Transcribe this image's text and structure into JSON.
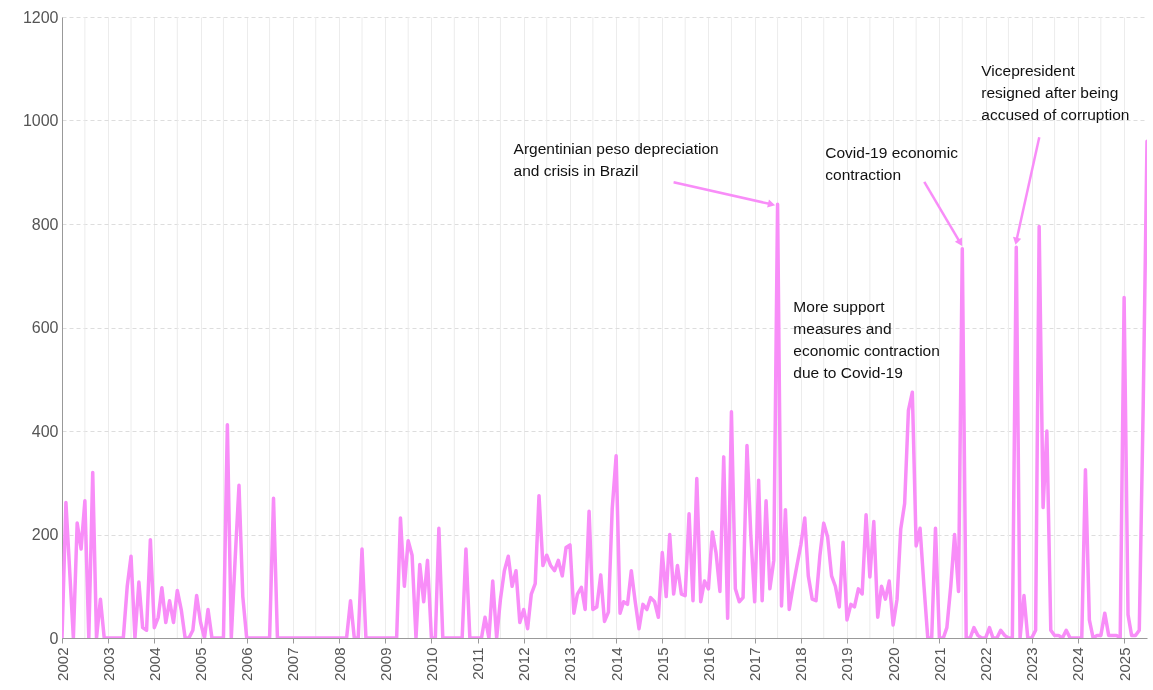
{
  "chart_data": {
    "type": "line",
    "xlim": [
      "2002-01",
      "2025-07"
    ],
    "ylim": [
      0,
      1200
    ],
    "yticks": [
      0,
      200,
      400,
      600,
      800,
      1000,
      1200
    ],
    "xticks": [
      "2002",
      {
        "value": "2002-07",
        "label": null
      },
      "2003",
      {
        "value": "2003-07",
        "label": null
      },
      "2004",
      {
        "value": "2004-07",
        "label": null
      },
      "2005",
      {
        "value": "2005-07",
        "label": null
      },
      "2006",
      {
        "value": "2006-07",
        "label": null
      },
      "2007",
      {
        "value": "2007-07",
        "label": null
      },
      "2008",
      {
        "value": "2008-07",
        "label": null
      },
      "2009",
      {
        "value": "2009-07",
        "label": null
      },
      "2010",
      {
        "value": "2010-07",
        "label": null
      },
      "2011",
      {
        "value": "2011-07",
        "label": null
      },
      "2012",
      {
        "value": "2012-07",
        "label": null
      },
      "2013",
      {
        "value": "2013-07",
        "label": null
      },
      "2014",
      {
        "value": "2014-07",
        "label": null
      },
      "2015",
      {
        "value": "2015-07",
        "label": null
      },
      "2016",
      {
        "value": "2016-07",
        "label": null
      },
      "2017",
      {
        "value": "2017-07",
        "label": null
      },
      "2018",
      {
        "value": "2018-07",
        "label": null
      },
      "2019",
      {
        "value": "2019-07",
        "label": null
      },
      "2020",
      {
        "value": "2020-07",
        "label": null
      },
      "2021",
      {
        "value": "2021-07",
        "label": null
      },
      "2022",
      {
        "value": "2022-07",
        "label": null
      },
      "2023",
      {
        "value": "2023-07",
        "label": null
      },
      "2024",
      {
        "value": "2024-07",
        "label": null
      },
      "2025"
    ],
    "grid": true,
    "line_style": "solid",
    "x": [
      "2002-01",
      "2002-02",
      "2002-04",
      "2002-05",
      "2002-06",
      "2002-07",
      "2002-08",
      "2002-09",
      "2002-10",
      "2002-11",
      "2002-12",
      "2003-05",
      "2003-06",
      "2003-07",
      "2003-08",
      "2003-09",
      "2003-10",
      "2003-11",
      "2003-12",
      "2004-01",
      "2004-02",
      "2004-03",
      "2004-04",
      "2004-05",
      "2004-06",
      "2004-07",
      "2004-08",
      "2004-09",
      "2004-10",
      "2004-11",
      "2004-12",
      "2005-01",
      "2005-02",
      "2005-03",
      "2005-04",
      "2005-07",
      "2005-08",
      "2005-09",
      "2005-10",
      "2005-11",
      "2005-12",
      "2006-01",
      "2006-07",
      "2006-08",
      "2006-09",
      "2008-03",
      "2008-04",
      "2008-05",
      "2008-06",
      "2008-07",
      "2008-08",
      "2009-04",
      "2009-05",
      "2009-06",
      "2009-07",
      "2009-08",
      "2009-09",
      "2009-10",
      "2009-11",
      "2009-12",
      "2010-01",
      "2010-02",
      "2010-03",
      "2010-04",
      "2010-09",
      "2010-10",
      "2010-11",
      "2011-02",
      "2011-03",
      "2011-04",
      "2011-05",
      "2011-06",
      "2011-07",
      "2011-08",
      "2011-09",
      "2011-10",
      "2011-11",
      "2011-12",
      "2012-01",
      "2012-02",
      "2012-03",
      "2012-04",
      "2012-05",
      "2012-06",
      "2012-07",
      "2012-08",
      "2012-09",
      "2012-10",
      "2012-11",
      "2012-12",
      "2013-01",
      "2013-02",
      "2013-03",
      "2013-04",
      "2013-05",
      "2013-06",
      "2013-07",
      "2013-08",
      "2013-09",
      "2013-10",
      "2013-11",
      "2013-12",
      "2014-01",
      "2014-02",
      "2014-03",
      "2014-04",
      "2014-05",
      "2014-06",
      "2014-07",
      "2014-08",
      "2014-09",
      "2014-10",
      "2014-11",
      "2014-12",
      "2015-01",
      "2015-02",
      "2015-03",
      "2015-04",
      "2015-05",
      "2015-06",
      "2015-07",
      "2015-08",
      "2015-09",
      "2015-10",
      "2015-11",
      "2015-12",
      "2016-01",
      "2016-02",
      "2016-03",
      "2016-04",
      "2016-05",
      "2016-06",
      "2016-07",
      "2016-08",
      "2016-09",
      "2016-10",
      "2016-11",
      "2016-12",
      "2017-01",
      "2017-02",
      "2017-03",
      "2017-04",
      "2017-05",
      "2017-06",
      "2017-07",
      "2017-08",
      "2017-09",
      "2017-10",
      "2017-11",
      "2017-12",
      "2018-01",
      "2018-02",
      "2018-03",
      "2018-04",
      "2018-05",
      "2018-06",
      "2018-07",
      "2018-08",
      "2018-09",
      "2018-10",
      "2018-11",
      "2018-12",
      "2019-01",
      "2019-02",
      "2019-03",
      "2019-04",
      "2019-05",
      "2019-06",
      "2019-07",
      "2019-08",
      "2019-09",
      "2019-10",
      "2019-11",
      "2019-12",
      "2020-01",
      "2020-02",
      "2020-03",
      "2020-04",
      "2020-05",
      "2020-06",
      "2020-07",
      "2020-08",
      "2020-09",
      "2020-10",
      "2020-11",
      "2020-12",
      "2021-01",
      "2021-02",
      "2021-03",
      "2021-04",
      "2021-05",
      "2021-06",
      "2021-07",
      "2021-08",
      "2021-09",
      "2021-10",
      "2021-11",
      "2021-12",
      "2022-01",
      "2022-02",
      "2022-03",
      "2022-04",
      "2022-05",
      "2022-06",
      "2022-07",
      "2022-08",
      "2022-09",
      "2022-10",
      "2022-11",
      "2022-12",
      "2023-01",
      "2023-02",
      "2023-03",
      "2023-04",
      "2023-05",
      "2023-06",
      "2023-07",
      "2023-08",
      "2023-09",
      "2023-10",
      "2023-11",
      "2024-02",
      "2024-03",
      "2024-04",
      "2024-05",
      "2024-06",
      "2024-07",
      "2024-08",
      "2024-09",
      "2024-10",
      "2024-11",
      "2024-12",
      "2025-01",
      "2025-02",
      "2025-03",
      "2025-04",
      "2025-05",
      "2025-06",
      "2025-07"
    ],
    "series": [
      {
        "color": "#f88df8",
        "values": [
          0,
          262,
          0,
          222,
          172,
          265,
          0,
          320,
          0,
          75,
          0,
          0,
          100,
          158,
          0,
          108,
          20,
          15,
          190,
          20,
          40,
          97,
          30,
          72,
          30,
          92,
          55,
          0,
          0,
          15,
          82,
          30,
          0,
          55,
          0,
          0,
          412,
          0,
          150,
          295,
          80,
          0,
          0,
          270,
          0,
          0,
          72,
          0,
          0,
          172,
          0,
          0,
          232,
          100,
          188,
          160,
          0,
          142,
          70,
          150,
          0,
          0,
          212,
          0,
          0,
          172,
          0,
          0,
          40,
          0,
          110,
          0,
          75,
          130,
          158,
          100,
          130,
          30,
          55,
          18,
          85,
          105,
          275,
          140,
          160,
          140,
          130,
          150,
          120,
          175,
          180,
          48,
          85,
          98,
          55,
          245,
          55,
          60,
          122,
          32,
          50,
          250,
          352,
          48,
          70,
          65,
          130,
          70,
          18,
          65,
          55,
          78,
          70,
          40,
          165,
          80,
          200,
          85,
          140,
          85,
          82,
          240,
          72,
          308,
          70,
          110,
          95,
          205,
          165,
          90,
          350,
          38,
          437,
          95,
          70,
          78,
          372,
          200,
          70,
          305,
          72,
          265,
          95,
          150,
          838,
          62,
          248,
          55,
          100,
          140,
          180,
          232,
          120,
          75,
          72,
          160,
          222,
          195,
          120,
          100,
          60,
          185,
          35,
          65,
          60,
          95,
          85,
          238,
          118,
          225,
          40,
          100,
          75,
          110,
          25,
          75,
          210,
          260,
          440,
          475,
          178,
          212,
          100,
          0,
          0,
          212,
          0,
          0,
          20,
          100,
          200,
          90,
          752,
          0,
          0,
          20,
          5,
          0,
          0,
          20,
          0,
          0,
          15,
          5,
          0,
          0,
          755,
          0,
          82,
          0,
          0,
          15,
          795,
          252,
          400,
          15,
          5,
          5,
          0,
          15,
          0,
          0,
          325,
          35,
          0,
          5,
          5,
          48,
          5,
          5,
          5,
          0,
          658,
          45,
          5,
          5,
          15,
          450,
          960
        ]
      }
    ],
    "annotations": [
      {
        "text": "Argentinian peso depreciation\nand crisis in Brazil",
        "x": "2017-07",
        "y": 838
      },
      {
        "text": "Covid-19 economic\ncontraction",
        "x": "2021-07",
        "y": 752
      },
      {
        "text": "Vicepresident\nresigned after being\naccused of corruption",
        "x": "2022-09",
        "y": 755
      },
      {
        "text": "More support\nmeasures and\neconomic contraction\ndue to Covid-19",
        "x": "2020-06",
        "y": 475
      }
    ]
  }
}
